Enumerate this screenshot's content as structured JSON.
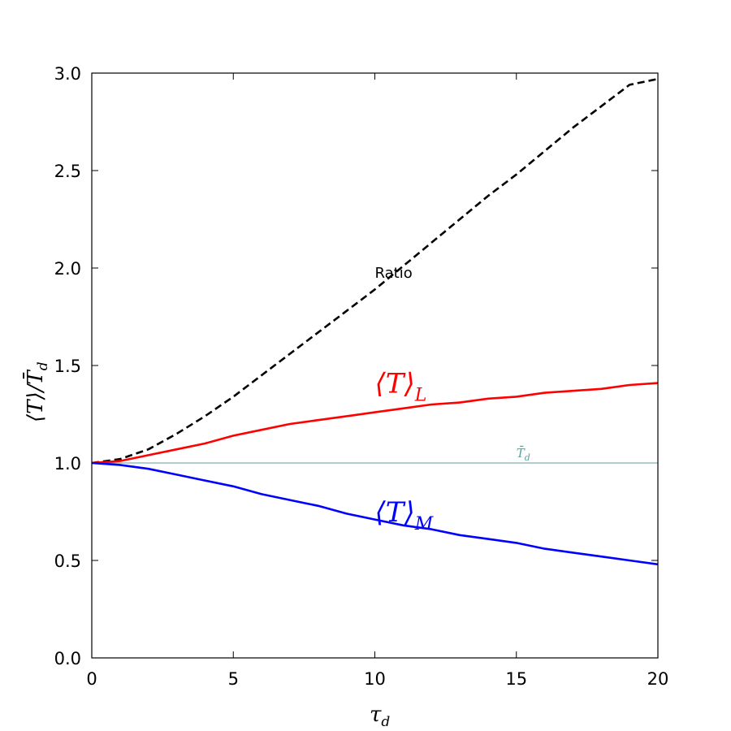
{
  "chart_data": {
    "type": "line",
    "xlabel": "τ",
    "xlabel_sub": "d",
    "ylabel": "⟨T⟩/T̄",
    "ylabel_sub": "d",
    "xlim": [
      0,
      20
    ],
    "ylim": [
      0,
      3
    ],
    "xticks": [
      0,
      5,
      10,
      15,
      20
    ],
    "yticks": [
      0.0,
      0.5,
      1.0,
      1.5,
      2.0,
      2.5,
      3.0
    ],
    "grid": false,
    "x": [
      0,
      1,
      2,
      3,
      4,
      5,
      6,
      7,
      8,
      9,
      10,
      11,
      12,
      13,
      14,
      15,
      16,
      17,
      18,
      19,
      20
    ],
    "series": [
      {
        "name": "Ratio",
        "color": "#000000",
        "dashed": true,
        "label_x": 10.0,
        "label_y": 1.95,
        "values": [
          1.0,
          1.02,
          1.07,
          1.15,
          1.24,
          1.34,
          1.45,
          1.56,
          1.67,
          1.78,
          1.89,
          2.01,
          2.13,
          2.25,
          2.37,
          2.48,
          2.6,
          2.72,
          2.83,
          2.94,
          2.97
        ]
      },
      {
        "name": "⟨T⟩",
        "name_sub": "L",
        "color": "#ff0000",
        "dashed": false,
        "label_x": 10.0,
        "label_y": 1.36,
        "values": [
          1.0,
          1.01,
          1.04,
          1.07,
          1.1,
          1.14,
          1.17,
          1.2,
          1.22,
          1.24,
          1.26,
          1.28,
          1.3,
          1.31,
          1.33,
          1.34,
          1.36,
          1.37,
          1.38,
          1.4,
          1.41
        ]
      },
      {
        "name": "⟨T⟩",
        "name_sub": "M",
        "color": "#0000ff",
        "dashed": false,
        "label_x": 10.0,
        "label_y": 0.7,
        "values": [
          1.0,
          0.99,
          0.97,
          0.94,
          0.91,
          0.88,
          0.84,
          0.81,
          0.78,
          0.74,
          0.71,
          0.68,
          0.66,
          0.63,
          0.61,
          0.59,
          0.56,
          0.54,
          0.52,
          0.5,
          0.48
        ]
      }
    ],
    "reference_line": {
      "y": 1.0,
      "color": "#5f9ea0",
      "label": "T̄",
      "label_sub": "d",
      "label_x": 15.0,
      "label_y": 1.03
    }
  }
}
